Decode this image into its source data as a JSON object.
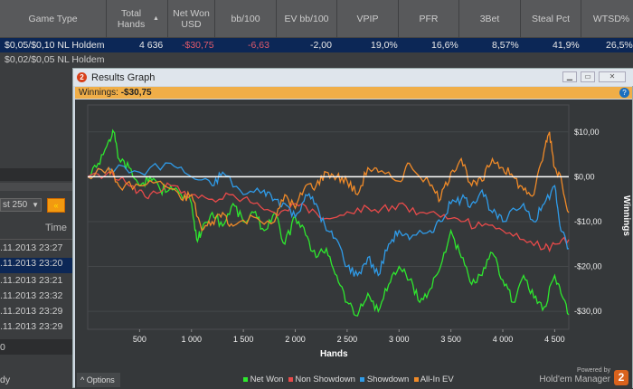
{
  "grid": {
    "columns": [
      "Game Type",
      "Total Hands",
      "Net Won USD",
      "bb/100",
      "EV bb/100",
      "VPIP",
      "PFR",
      "3Bet",
      "Steal Pct",
      "WTSD%"
    ],
    "rows": [
      {
        "game": "$0,05/$0,10 NL Holdem",
        "hands": "4 636",
        "net": "-$30,75",
        "bb": "-6,63",
        "ev": "-2,00",
        "vpip": "19,0%",
        "pfr": "16,6%",
        "threebet": "8,57%",
        "steal": "41,9%",
        "wtsd": "26,5%"
      },
      {
        "game": "$0,02/$0,05 NL Holdem"
      }
    ]
  },
  "left_panel": {
    "filter_value": "st 250",
    "time_header": "Time",
    "times": [
      ".11.2013 23:27",
      ".11.2013 23:20",
      ".11.2013 23:21",
      ".11.2013 23:32",
      ".11.2013 23:29",
      ".11.2013 23:29"
    ],
    "footer_value": "0",
    "status": "dy"
  },
  "dialog": {
    "title": "Results Graph",
    "winnings_label": "Winnings:",
    "winnings_value": "-$30,75",
    "options_label": "Options",
    "powered_by": "Powered by",
    "brand": "Hold'em Manager",
    "brand_num": "2"
  },
  "colors": {
    "net_won": "#2ee82e",
    "non_showdown": "#e84a4a",
    "showdown": "#2f9be8",
    "allin_ev": "#f08a28"
  },
  "chart_data": {
    "type": "line",
    "xlabel": "Hands",
    "ylabel": "Winnings",
    "xlim": [
      0,
      4636
    ],
    "ylim": [
      -34,
      16
    ],
    "xticks": [
      500,
      1000,
      1500,
      2000,
      2500,
      3000,
      3500,
      4000,
      4500
    ],
    "xtick_labels": [
      "500",
      "1 000",
      "1 500",
      "2 000",
      "2 500",
      "3 000",
      "3 500",
      "4 000",
      "4 500"
    ],
    "yticks": [
      10,
      0,
      -10,
      -20,
      -30
    ],
    "ytick_labels": [
      "$10,00",
      "$0,00",
      "-$10,00",
      "-$20,00",
      "-$30,00"
    ],
    "legend": [
      "Net Won",
      "Non Showdown",
      "Showdown",
      "All-In EV"
    ],
    "legend_position": "bottom",
    "series": [
      {
        "name": "Net Won",
        "key": "net_won",
        "points": [
          [
            0,
            0
          ],
          [
            100,
            3
          ],
          [
            200,
            8
          ],
          [
            250,
            10
          ],
          [
            300,
            4
          ],
          [
            400,
            2
          ],
          [
            500,
            -2
          ],
          [
            600,
            0
          ],
          [
            700,
            -3
          ],
          [
            800,
            -2
          ],
          [
            900,
            -4
          ],
          [
            1000,
            -6
          ],
          [
            1050,
            -14
          ],
          [
            1100,
            -12
          ],
          [
            1200,
            -8
          ],
          [
            1300,
            -11
          ],
          [
            1400,
            -6
          ],
          [
            1500,
            -10
          ],
          [
            1600,
            -8
          ],
          [
            1700,
            -12
          ],
          [
            1800,
            -8
          ],
          [
            1900,
            -15
          ],
          [
            2000,
            -9
          ],
          [
            2100,
            -13
          ],
          [
            2200,
            -18
          ],
          [
            2300,
            -16
          ],
          [
            2400,
            -22
          ],
          [
            2500,
            -28
          ],
          [
            2600,
            -31
          ],
          [
            2700,
            -26
          ],
          [
            2800,
            -30
          ],
          [
            2900,
            -24
          ],
          [
            3000,
            -20
          ],
          [
            3100,
            -23
          ],
          [
            3200,
            -28
          ],
          [
            3300,
            -25
          ],
          [
            3400,
            -20
          ],
          [
            3500,
            -12
          ],
          [
            3600,
            -18
          ],
          [
            3700,
            -24
          ],
          [
            3800,
            -22
          ],
          [
            3900,
            -17
          ],
          [
            4000,
            -23
          ],
          [
            4100,
            -28
          ],
          [
            4200,
            -22
          ],
          [
            4300,
            -27
          ],
          [
            4400,
            -29
          ],
          [
            4500,
            -22
          ],
          [
            4560,
            -26
          ],
          [
            4636,
            -30.75
          ]
        ]
      },
      {
        "name": "Non Showdown",
        "key": "non_showdown",
        "points": [
          [
            0,
            0
          ],
          [
            200,
            1
          ],
          [
            400,
            -2
          ],
          [
            500,
            -3
          ],
          [
            600,
            -4
          ],
          [
            800,
            -2
          ],
          [
            1000,
            -4
          ],
          [
            1200,
            -5
          ],
          [
            1400,
            -4
          ],
          [
            1600,
            -6
          ],
          [
            1800,
            -8
          ],
          [
            2000,
            -6
          ],
          [
            2200,
            -8
          ],
          [
            2400,
            -9
          ],
          [
            2600,
            -7
          ],
          [
            2800,
            -8
          ],
          [
            3000,
            -6
          ],
          [
            3200,
            -8
          ],
          [
            3400,
            -9
          ],
          [
            3600,
            -10
          ],
          [
            3800,
            -11
          ],
          [
            4000,
            -12
          ],
          [
            4200,
            -14
          ],
          [
            4400,
            -16
          ],
          [
            4500,
            -15
          ],
          [
            4636,
            -14
          ]
        ]
      },
      {
        "name": "Showdown",
        "key": "showdown",
        "points": [
          [
            0,
            0
          ],
          [
            200,
            2
          ],
          [
            500,
            1
          ],
          [
            800,
            3
          ],
          [
            1000,
            0
          ],
          [
            1200,
            -2
          ],
          [
            1300,
            1
          ],
          [
            1500,
            -4
          ],
          [
            1700,
            -3
          ],
          [
            1800,
            -5
          ],
          [
            1900,
            -6
          ],
          [
            2000,
            -9
          ],
          [
            2100,
            -4
          ],
          [
            2200,
            -6
          ],
          [
            2300,
            -12
          ],
          [
            2400,
            -14
          ],
          [
            2500,
            -20
          ],
          [
            2600,
            -22
          ],
          [
            2700,
            -18
          ],
          [
            2800,
            -22
          ],
          [
            2900,
            -15
          ],
          [
            3000,
            -12
          ],
          [
            3100,
            -14
          ],
          [
            3300,
            -12
          ],
          [
            3400,
            -10
          ],
          [
            3500,
            -6
          ],
          [
            3600,
            -5
          ],
          [
            3700,
            -6
          ],
          [
            3800,
            -3
          ],
          [
            3900,
            -8
          ],
          [
            4000,
            -10
          ],
          [
            4200,
            -6
          ],
          [
            4300,
            -10
          ],
          [
            4400,
            -6
          ],
          [
            4500,
            -2
          ],
          [
            4560,
            -12
          ],
          [
            4636,
            -16
          ]
        ]
      },
      {
        "name": "All-In EV",
        "key": "allin_ev",
        "points": [
          [
            0,
            0
          ],
          [
            200,
            2
          ],
          [
            300,
            -2
          ],
          [
            500,
            -2
          ],
          [
            700,
            -1
          ],
          [
            900,
            -5
          ],
          [
            1000,
            -4
          ],
          [
            1100,
            -12
          ],
          [
            1200,
            -10
          ],
          [
            1300,
            -8
          ],
          [
            1400,
            -11
          ],
          [
            1600,
            -9
          ],
          [
            1800,
            -10
          ],
          [
            1900,
            -4
          ],
          [
            2000,
            -7
          ],
          [
            2100,
            -2
          ],
          [
            2200,
            -2
          ],
          [
            2300,
            1
          ],
          [
            2400,
            0
          ],
          [
            2500,
            -1
          ],
          [
            2600,
            -4
          ],
          [
            2700,
            2
          ],
          [
            2800,
            1
          ],
          [
            3000,
            -1
          ],
          [
            3100,
            3
          ],
          [
            3300,
            -2
          ],
          [
            3400,
            -5
          ],
          [
            3500,
            1
          ],
          [
            3600,
            4
          ],
          [
            3700,
            -2
          ],
          [
            3800,
            -1
          ],
          [
            3900,
            4
          ],
          [
            4000,
            2
          ],
          [
            4100,
            0
          ],
          [
            4200,
            -3
          ],
          [
            4300,
            -4
          ],
          [
            4400,
            6
          ],
          [
            4450,
            10
          ],
          [
            4500,
            2
          ],
          [
            4560,
            0
          ],
          [
            4636,
            -8
          ]
        ]
      }
    ]
  }
}
